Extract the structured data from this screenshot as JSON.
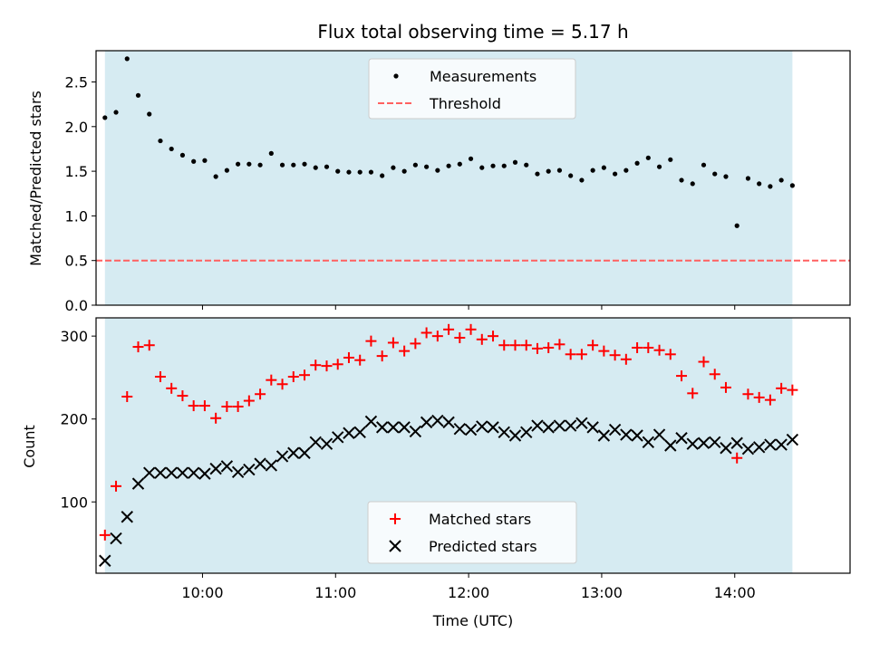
{
  "colors": {
    "background": "#ffffff",
    "shaded_band": "#add8e6",
    "measurements": "#000000",
    "threshold": "#ff6060",
    "matched": "#ff0000",
    "predicted": "#000000"
  },
  "chart_data": [
    {
      "type": "scatter",
      "title": "Flux total observing time = 5.17 h",
      "xlabel": "",
      "ylabel": "Matched/Predicted stars",
      "xlim": [
        "09:12",
        "14:52"
      ],
      "ylim": [
        0,
        2.85
      ],
      "yticks": [
        0.0,
        0.5,
        1.0,
        1.5,
        2.0,
        2.5
      ],
      "ytick_labels": [
        "0.0",
        "0.5",
        "1.0",
        "1.5",
        "2.0",
        "2.5"
      ],
      "xticks": [
        "10:00",
        "11:00",
        "12:00",
        "13:00",
        "14:00"
      ],
      "shaded_span": [
        "09:16",
        "14:26"
      ],
      "legend": {
        "placement": "upper center",
        "entries": [
          "Measurements",
          "Threshold"
        ]
      },
      "threshold": {
        "name": "Threshold",
        "y": 0.5,
        "style": "dashed"
      },
      "series": [
        {
          "name": "Measurements",
          "marker": "dot",
          "x": [
            "09:16",
            "09:21",
            "09:26",
            "09:31",
            "09:36",
            "09:41",
            "09:46",
            "09:51",
            "09:56",
            "10:01",
            "10:06",
            "10:11",
            "10:16",
            "10:21",
            "10:26",
            "10:31",
            "10:36",
            "10:41",
            "10:46",
            "10:51",
            "10:56",
            "11:01",
            "11:06",
            "11:11",
            "11:16",
            "11:21",
            "11:26",
            "11:31",
            "11:36",
            "11:41",
            "11:46",
            "11:51",
            "11:56",
            "12:01",
            "12:06",
            "12:11",
            "12:16",
            "12:21",
            "12:26",
            "12:31",
            "12:36",
            "12:41",
            "12:46",
            "12:51",
            "12:56",
            "13:01",
            "13:06",
            "13:11",
            "13:16",
            "13:21",
            "13:26",
            "13:31",
            "13:36",
            "13:41",
            "13:46",
            "13:51",
            "13:56",
            "14:01",
            "14:06",
            "14:11",
            "14:16",
            "14:21",
            "14:26"
          ],
          "y": [
            2.1,
            2.16,
            2.76,
            2.35,
            2.14,
            1.84,
            1.75,
            1.68,
            1.61,
            1.62,
            1.44,
            1.51,
            1.58,
            1.58,
            1.57,
            1.7,
            1.57,
            1.57,
            1.58,
            1.54,
            1.55,
            1.5,
            1.49,
            1.49,
            1.49,
            1.45,
            1.54,
            1.5,
            1.57,
            1.55,
            1.51,
            1.56,
            1.58,
            1.64,
            1.54,
            1.56,
            1.56,
            1.6,
            1.57,
            1.47,
            1.5,
            1.51,
            1.45,
            1.4,
            1.51,
            1.54,
            1.47,
            1.51,
            1.59,
            1.65,
            1.55,
            1.63,
            1.4,
            1.36,
            1.57,
            1.47,
            1.44,
            0.89,
            1.42,
            1.36,
            1.33,
            1.4,
            1.34
          ]
        }
      ]
    },
    {
      "type": "scatter",
      "title": "",
      "xlabel": "Time (UTC)",
      "ylabel": "Count",
      "xlim": [
        "09:12",
        "14:52"
      ],
      "ylim": [
        14,
        322
      ],
      "yticks": [
        100,
        200,
        300
      ],
      "ytick_labels": [
        "100",
        "200",
        "300"
      ],
      "xticks": [
        "10:00",
        "11:00",
        "12:00",
        "13:00",
        "14:00"
      ],
      "xtick_labels": [
        "10:00",
        "11:00",
        "12:00",
        "13:00",
        "14:00"
      ],
      "shaded_span": [
        "09:16",
        "14:26"
      ],
      "legend": {
        "placement": "lower center",
        "entries": [
          "Matched stars",
          "Predicted stars"
        ]
      },
      "series": [
        {
          "name": "Matched stars",
          "marker": "plus",
          "x": [
            "09:16",
            "09:21",
            "09:26",
            "09:31",
            "09:36",
            "09:41",
            "09:46",
            "09:51",
            "09:56",
            "10:01",
            "10:06",
            "10:11",
            "10:16",
            "10:21",
            "10:26",
            "10:31",
            "10:36",
            "10:41",
            "10:46",
            "10:51",
            "10:56",
            "11:01",
            "11:06",
            "11:11",
            "11:16",
            "11:21",
            "11:26",
            "11:31",
            "11:36",
            "11:41",
            "11:46",
            "11:51",
            "11:56",
            "12:01",
            "12:06",
            "12:11",
            "12:16",
            "12:21",
            "12:26",
            "12:31",
            "12:36",
            "12:41",
            "12:46",
            "12:51",
            "12:56",
            "13:01",
            "13:06",
            "13:11",
            "13:16",
            "13:21",
            "13:26",
            "13:31",
            "13:36",
            "13:41",
            "13:46",
            "13:51",
            "13:56",
            "14:01",
            "14:06",
            "14:11",
            "14:16",
            "14:21",
            "14:26"
          ],
          "y": [
            60,
            119,
            227,
            287,
            289,
            251,
            237,
            228,
            216,
            216,
            201,
            215,
            215,
            222,
            230,
            247,
            242,
            251,
            253,
            265,
            264,
            266,
            274,
            271,
            294,
            276,
            292,
            282,
            291,
            304,
            300,
            308,
            298,
            308,
            296,
            300,
            289,
            289,
            289,
            285,
            286,
            290,
            278,
            278,
            289,
            282,
            277,
            272,
            286,
            286,
            283,
            278,
            252,
            231,
            269,
            254,
            238,
            153,
            230,
            226,
            223,
            237,
            235
          ]
        },
        {
          "name": "Predicted stars",
          "marker": "x",
          "x": [
            "09:16",
            "09:21",
            "09:26",
            "09:31",
            "09:36",
            "09:41",
            "09:46",
            "09:51",
            "09:56",
            "10:01",
            "10:06",
            "10:11",
            "10:16",
            "10:21",
            "10:26",
            "10:31",
            "10:36",
            "10:41",
            "10:46",
            "10:51",
            "10:56",
            "11:01",
            "11:06",
            "11:11",
            "11:16",
            "11:21",
            "11:26",
            "11:31",
            "11:36",
            "11:41",
            "11:46",
            "11:51",
            "11:56",
            "12:01",
            "12:06",
            "12:11",
            "12:16",
            "12:21",
            "12:26",
            "12:31",
            "12:36",
            "12:41",
            "12:46",
            "12:51",
            "12:56",
            "13:01",
            "13:06",
            "13:11",
            "13:16",
            "13:21",
            "13:26",
            "13:31",
            "13:36",
            "13:41",
            "13:46",
            "13:51",
            "13:56",
            "14:01",
            "14:06",
            "14:11",
            "14:16",
            "14:21",
            "14:26"
          ],
          "y": [
            29,
            56,
            82,
            122,
            135,
            135,
            135,
            135,
            135,
            134,
            140,
            143,
            136,
            139,
            146,
            144,
            155,
            159,
            159,
            172,
            170,
            178,
            183,
            184,
            197,
            190,
            190,
            190,
            185,
            196,
            198,
            196,
            188,
            187,
            191,
            190,
            184,
            180,
            184,
            192,
            190,
            192,
            192,
            195,
            190,
            180,
            187,
            181,
            180,
            172,
            181,
            168,
            177,
            170,
            171,
            172,
            165,
            171,
            164,
            166,
            169,
            169,
            175
          ]
        }
      ]
    }
  ]
}
